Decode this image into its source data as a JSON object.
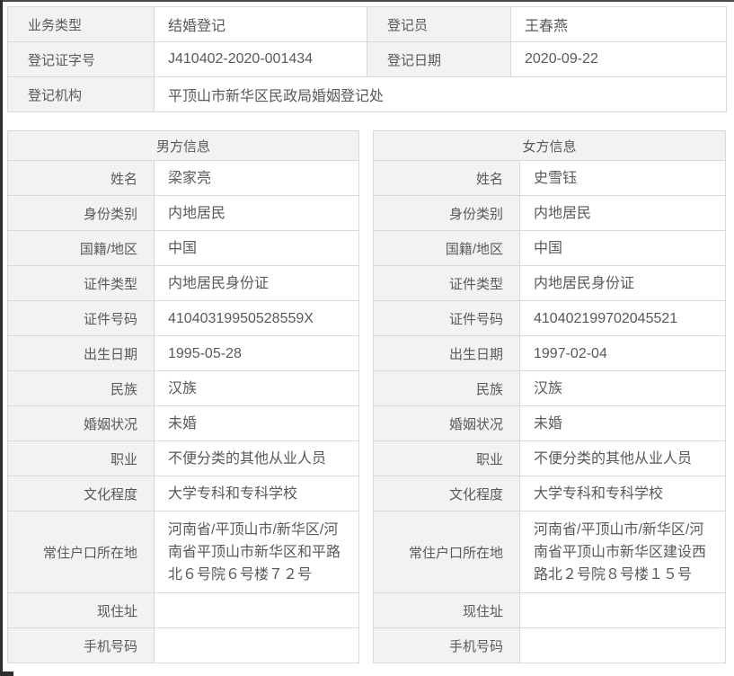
{
  "colors": {
    "label_bg": "#f2f2f2",
    "value_bg": "#ffffff",
    "border": "#d9d9d9",
    "text": "#595959",
    "screen_edge": "#2e2e2e"
  },
  "summary": {
    "business_type_label": "业务类型",
    "business_type_value": "结婚登记",
    "registrar_label": "登记员",
    "registrar_value": "王春燕",
    "certificate_number_label": "登记证字号",
    "certificate_number_value": "J410402-2020-001434",
    "registration_date_label": "登记日期",
    "registration_date_value": "2020-09-22",
    "agency_label": "登记机构",
    "agency_value": "平顶山市新华区民政局婚姻登记处"
  },
  "male": {
    "title": "男方信息",
    "fields": [
      {
        "label": "姓名",
        "value": "梁家亮"
      },
      {
        "label": "身份类别",
        "value": "内地居民"
      },
      {
        "label": "国籍/地区",
        "value": "中国"
      },
      {
        "label": "证件类型",
        "value": "内地居民身份证"
      },
      {
        "label": "证件号码",
        "value": "41040319950528559X"
      },
      {
        "label": "出生日期",
        "value": "1995-05-28"
      },
      {
        "label": "民族",
        "value": "汉族"
      },
      {
        "label": "婚姻状况",
        "value": "未婚"
      },
      {
        "label": "职业",
        "value": "不便分类的其他从业人员"
      },
      {
        "label": "文化程度",
        "value": "大学专科和专科学校"
      },
      {
        "label": "常住户口所在地",
        "value": "河南省/平顶山市/新华区/河南省平顶山市新华区和平路北６号院６号楼７２号"
      },
      {
        "label": "现住址",
        "value": ""
      },
      {
        "label": "手机号码",
        "value": ""
      }
    ]
  },
  "female": {
    "title": "女方信息",
    "fields": [
      {
        "label": "姓名",
        "value": "史雪钰"
      },
      {
        "label": "身份类别",
        "value": "内地居民"
      },
      {
        "label": "国籍/地区",
        "value": "中国"
      },
      {
        "label": "证件类型",
        "value": "内地居民身份证"
      },
      {
        "label": "证件号码",
        "value": "410402199702045521"
      },
      {
        "label": "出生日期",
        "value": "1997-02-04"
      },
      {
        "label": "民族",
        "value": "汉族"
      },
      {
        "label": "婚姻状况",
        "value": "未婚"
      },
      {
        "label": "职业",
        "value": "不便分类的其他从业人员"
      },
      {
        "label": "文化程度",
        "value": "大学专科和专科学校"
      },
      {
        "label": "常住户口所在地",
        "value": "河南省/平顶山市/新华区/河南省平顶山市新华区建设西路北２号院８号楼１５号"
      },
      {
        "label": "现住址",
        "value": ""
      },
      {
        "label": "手机号码",
        "value": ""
      }
    ]
  }
}
